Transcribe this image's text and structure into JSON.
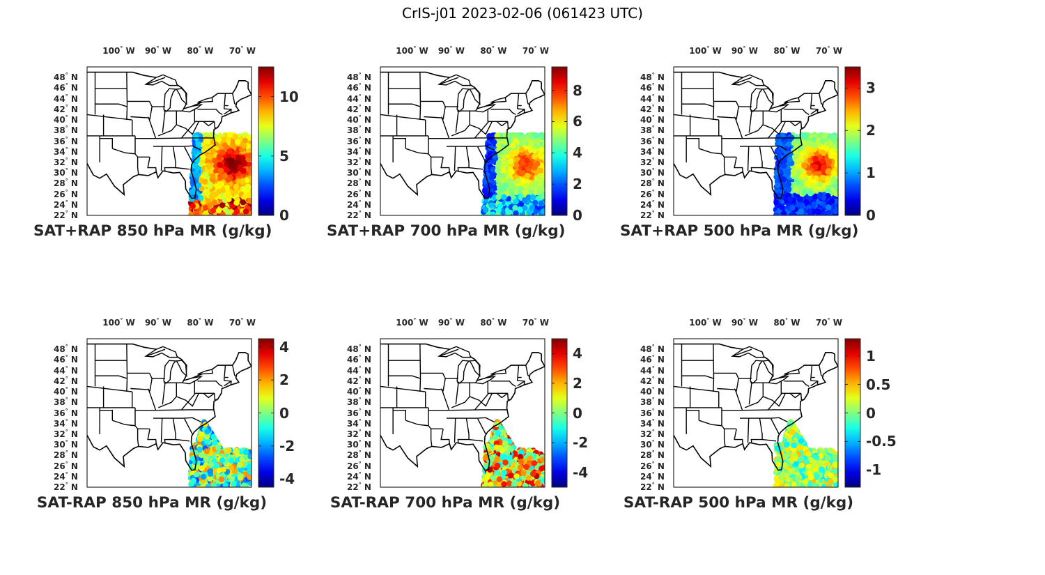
{
  "figure": {
    "title": "CrIS-j01 2023-02-06 (061423 UTC)"
  },
  "map_extent": {
    "lon": [
      -106,
      -67
    ],
    "lat": [
      22,
      50
    ]
  },
  "lon_ticks": [
    {
      "lon": -100,
      "deg": "100",
      "hem": "W"
    },
    {
      "lon": -90,
      "deg": "90",
      "hem": "W"
    },
    {
      "lon": -80,
      "deg": "80",
      "hem": "W"
    },
    {
      "lon": -70,
      "deg": "70",
      "hem": "W"
    }
  ],
  "lat_ticks": [
    {
      "lat": 48,
      "deg": "48",
      "hem": "N"
    },
    {
      "lat": 46,
      "deg": "46",
      "hem": "N"
    },
    {
      "lat": 44,
      "deg": "44",
      "hem": "N"
    },
    {
      "lat": 42,
      "deg": "42",
      "hem": "N"
    },
    {
      "lat": 40,
      "deg": "40",
      "hem": "N"
    },
    {
      "lat": 38,
      "deg": "38",
      "hem": "N"
    },
    {
      "lat": 36,
      "deg": "36",
      "hem": "N"
    },
    {
      "lat": 34,
      "deg": "34",
      "hem": "N"
    },
    {
      "lat": 32,
      "deg": "32",
      "hem": "N"
    },
    {
      "lat": 30,
      "deg": "30",
      "hem": "N"
    },
    {
      "lat": 28,
      "deg": "28",
      "hem": "N"
    },
    {
      "lat": 26,
      "deg": "26",
      "hem": "N"
    },
    {
      "lat": 24,
      "deg": "24",
      "hem": "N"
    },
    {
      "lat": 22,
      "deg": "22",
      "hem": "N"
    }
  ],
  "panels": [
    {
      "title": "SAT+RAP 850 hPa MR (g/kg)",
      "clim": [
        0,
        12.5
      ],
      "ticks": [
        {
          "v": 0,
          "label": "0"
        },
        {
          "v": 5,
          "label": "5"
        },
        {
          "v": 10,
          "label": "10"
        }
      ],
      "field": "total850"
    },
    {
      "title": "SAT+RAP 700 hPa MR (g/kg)",
      "clim": [
        0,
        9.5
      ],
      "ticks": [
        {
          "v": 0,
          "label": "0"
        },
        {
          "v": 2,
          "label": "2"
        },
        {
          "v": 4,
          "label": "4"
        },
        {
          "v": 6,
          "label": "6"
        },
        {
          "v": 8,
          "label": "8"
        }
      ],
      "field": "total700"
    },
    {
      "title": "SAT+RAP 500 hPa MR (g/kg)",
      "clim": [
        0,
        3.5
      ],
      "ticks": [
        {
          "v": 0,
          "label": "0"
        },
        {
          "v": 1,
          "label": "1"
        },
        {
          "v": 2,
          "label": "2"
        },
        {
          "v": 3,
          "label": "3"
        }
      ],
      "field": "total500"
    },
    {
      "title": "SAT-RAP 850 hPa MR (g/kg)",
      "clim": [
        -4.5,
        4.5
      ],
      "ticks": [
        {
          "v": -4,
          "label": "-4"
        },
        {
          "v": -2,
          "label": "-2"
        },
        {
          "v": 0,
          "label": "0"
        },
        {
          "v": 2,
          "label": "2"
        },
        {
          "v": 4,
          "label": "4"
        }
      ],
      "field": "diff850"
    },
    {
      "title": "SAT-RAP 700 hPa MR (g/kg)",
      "clim": [
        -5,
        5
      ],
      "ticks": [
        {
          "v": -4,
          "label": "-4"
        },
        {
          "v": -2,
          "label": "-2"
        },
        {
          "v": 0,
          "label": "0"
        },
        {
          "v": 2,
          "label": "2"
        },
        {
          "v": 4,
          "label": "4"
        }
      ],
      "field": "diff700"
    },
    {
      "title": "SAT-RAP 500 hPa MR (g/kg)",
      "clim": [
        -1.3,
        1.3
      ],
      "ticks": [
        {
          "v": -1,
          "label": "-1"
        },
        {
          "v": -0.5,
          "label": "-0.5"
        },
        {
          "v": 0,
          "label": "0"
        },
        {
          "v": 0.5,
          "label": "0.5"
        },
        {
          "v": 1,
          "label": "1"
        }
      ],
      "field": "diff500"
    }
  ],
  "colormap": "jet"
}
